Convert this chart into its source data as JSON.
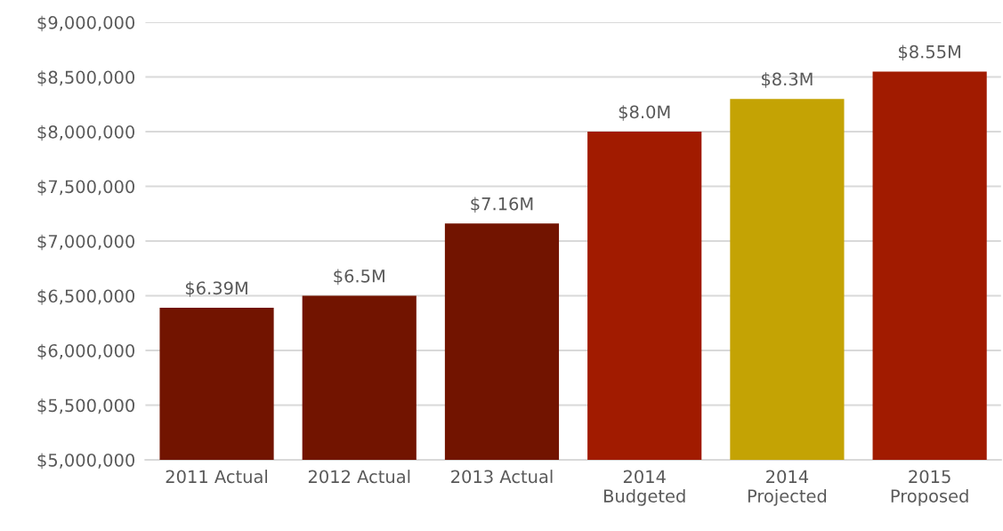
{
  "chart_data": {
    "type": "bar",
    "categories": [
      "2011 Actual",
      "2012 Actual",
      "2013 Actual",
      "2014\nBudgeted",
      "2014\nProjected",
      "2015\nProposed"
    ],
    "values": [
      6390000,
      6500000,
      7160000,
      8000000,
      8300000,
      8550000
    ],
    "value_labels": [
      "$6.39M",
      "$6.5M",
      "$7.16M",
      "$8.0M",
      "$8.3M",
      "$8.55M"
    ],
    "colors": [
      "#721400",
      "#721400",
      "#721400",
      "#a11b00",
      "#c4a304",
      "#a11b00"
    ],
    "ylim": [
      5000000,
      9000000
    ],
    "yticks": [
      {
        "value": 5000000,
        "label": "$5,000,000"
      },
      {
        "value": 5500000,
        "label": "$5,500,000"
      },
      {
        "value": 6000000,
        "label": "$6,000,000"
      },
      {
        "value": 6500000,
        "label": "$6,500,000"
      },
      {
        "value": 7000000,
        "label": "$7,000,000"
      },
      {
        "value": 7500000,
        "label": "$7,500,000"
      },
      {
        "value": 8000000,
        "label": "$8,000,000"
      },
      {
        "value": 8500000,
        "label": "$8,500,000"
      },
      {
        "value": 9000000,
        "label": "$9,000,000"
      }
    ],
    "grid": "y"
  }
}
